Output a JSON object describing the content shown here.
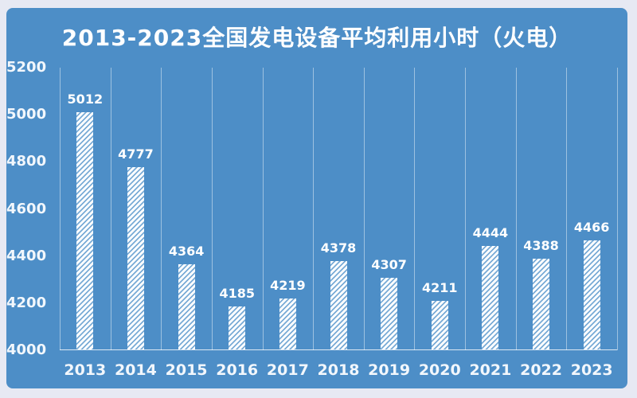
{
  "panel": {
    "background_color": "#4d8ec7",
    "outer_background_color": "#e7e9f3",
    "text_color": "#ffffff"
  },
  "chart_data": {
    "type": "bar",
    "title": "2013-2023全国发电设备平均利用小时（火电）",
    "categories": [
      "2013",
      "2014",
      "2015",
      "2016",
      "2017",
      "2018",
      "2019",
      "2020",
      "2021",
      "2022",
      "2023"
    ],
    "values": [
      5012,
      4777,
      4364,
      4185,
      4219,
      4378,
      4307,
      4211,
      4444,
      4388,
      4466
    ],
    "data_labels_shown": true,
    "xlabel": "",
    "ylabel": "",
    "ylim": [
      4000,
      5200
    ],
    "yticks": [
      5200,
      5000,
      4800,
      4600,
      4400,
      4200,
      4000
    ],
    "grid": "vertical-only",
    "legend": "none",
    "bar_style": "white-diagonal-hatch",
    "colors": {
      "plot_background": "#4d8ec7",
      "bar_fill": "#ffffff",
      "bar_hatch_line": "#79abd6",
      "gridline": "rgba(255,255,255,0.45)",
      "axis_line": "rgba(255,255,255,0.8)",
      "label_text": "#ffffff"
    }
  }
}
